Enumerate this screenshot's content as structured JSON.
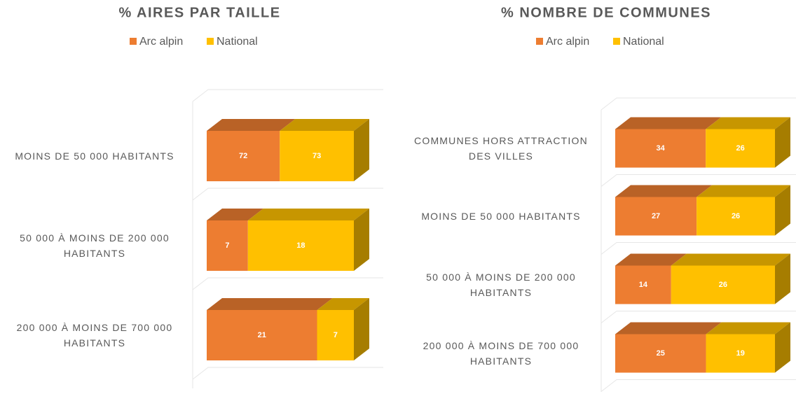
{
  "chart_data": [
    {
      "type": "bar",
      "stacked": "percent",
      "title": "% AIRES PAR TAILLE",
      "categories": [
        "MOINS DE 50 000 HABITANTS",
        "50 000 À MOINS DE 200 000 HABITANTS",
        "200 000 À MOINS DE 700 000 HABITANTS"
      ],
      "series": [
        {
          "name": "Arc alpin",
          "color": "#ed7d31",
          "values": [
            72,
            7,
            21
          ]
        },
        {
          "name": "National",
          "color": "#ffc000",
          "values": [
            73,
            18,
            7
          ]
        }
      ]
    },
    {
      "type": "bar",
      "stacked": "percent",
      "title": "% NOMBRE DE COMMUNES",
      "categories": [
        "COMMUNES HORS ATTRACTION DES VILLES",
        "MOINS DE 50 000 HABITANTS",
        "50 000 À MOINS DE 200 000 HABITANTS",
        "200 000 À MOINS DE 700 000 HABITANTS"
      ],
      "series": [
        {
          "name": "Arc alpin",
          "color": "#ed7d31",
          "values": [
            34,
            27,
            14,
            25
          ]
        },
        {
          "name": "National",
          "color": "#ffc000",
          "values": [
            26,
            26,
            26,
            19
          ]
        }
      ]
    }
  ]
}
